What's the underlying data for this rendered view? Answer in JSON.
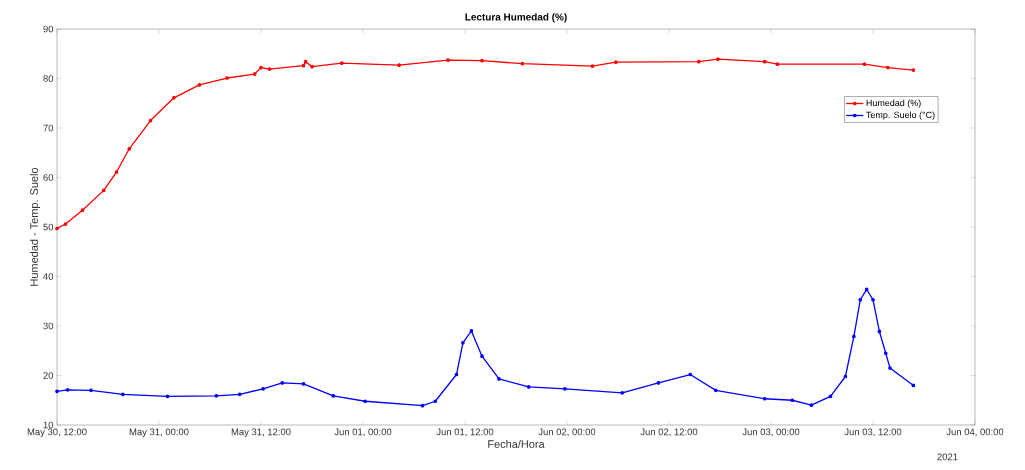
{
  "chart_data": {
    "type": "line",
    "title": "Lectura Humedad (%)",
    "xlabel": "Fecha/Hora",
    "ylabel": "Humedad - Temp. Suelo",
    "xlim": [
      "2021-05-30T12:00",
      "2021-06-04T00:00"
    ],
    "xticks": [
      {
        "value": "2021-05-30T12:00",
        "label": "May 30, 12:00"
      },
      {
        "value": "2021-05-31T00:00",
        "label": "May 31, 00:00"
      },
      {
        "value": "2021-05-31T12:00",
        "label": "May 31, 12:00"
      },
      {
        "value": "2021-06-01T00:00",
        "label": "Jun 01, 00:00"
      },
      {
        "value": "2021-06-01T12:00",
        "label": "Jun 01, 12:00"
      },
      {
        "value": "2021-06-02T00:00",
        "label": "Jun 02, 00:00"
      },
      {
        "value": "2021-06-02T12:00",
        "label": "Jun 02, 12:00"
      },
      {
        "value": "2021-06-03T00:00",
        "label": "Jun 03, 00:00"
      },
      {
        "value": "2021-06-03T12:00",
        "label": "Jun 03, 12:00"
      },
      {
        "value": "2021-06-04T00:00",
        "label": "Jun 04, 00:00"
      }
    ],
    "ylim": [
      10,
      90
    ],
    "yticks": [
      10,
      20,
      30,
      40,
      50,
      60,
      70,
      80,
      90
    ],
    "annotations": [
      "2021"
    ],
    "legend": "top right",
    "marker": "circle",
    "line_style": "solid",
    "grid": false,
    "series": [
      {
        "name": "Humedad (%)",
        "color": "#ff0000",
        "x": [
          "2021-05-30T12:00",
          "2021-05-30T13:00",
          "2021-05-30T15:00",
          "2021-05-30T17:30",
          "2021-05-30T19:00",
          "2021-05-30T20:30",
          "2021-05-30T23:00",
          "2021-05-31T01:45",
          "2021-05-31T04:45",
          "2021-05-31T08:00",
          "2021-05-31T11:15",
          "2021-05-31T12:00",
          "2021-05-31T13:00",
          "2021-05-31T17:00",
          "2021-05-31T17:15",
          "2021-05-31T18:00",
          "2021-05-31T21:30",
          "2021-06-01T04:15",
          "2021-06-01T10:00",
          "2021-06-01T14:00",
          "2021-06-01T18:45",
          "2021-06-02T03:00",
          "2021-06-02T05:45",
          "2021-06-02T15:30",
          "2021-06-02T17:45",
          "2021-06-02T23:15",
          "2021-06-03T00:45",
          "2021-06-03T11:00",
          "2021-06-03T13:45",
          "2021-06-03T16:45"
        ],
        "values": [
          49.7,
          50.6,
          53.4,
          57.4,
          61.1,
          65.8,
          71.5,
          76.1,
          78.7,
          80.1,
          80.9,
          82.2,
          81.9,
          82.6,
          83.4,
          82.4,
          83.1,
          82.7,
          83.7,
          83.6,
          83.0,
          82.5,
          83.3,
          83.4,
          83.9,
          83.4,
          82.9,
          82.9,
          82.2,
          81.7
        ]
      },
      {
        "name": "Temp. Suelo (°C)",
        "color": "#0000ff",
        "x": [
          "2021-05-30T12:00",
          "2021-05-30T13:15",
          "2021-05-30T16:00",
          "2021-05-30T19:45",
          "2021-05-31T01:00",
          "2021-05-31T06:45",
          "2021-05-31T09:30",
          "2021-05-31T12:15",
          "2021-05-31T14:30",
          "2021-05-31T17:00",
          "2021-05-31T20:30",
          "2021-06-01T00:15",
          "2021-06-01T07:00",
          "2021-06-01T08:30",
          "2021-06-01T11:00",
          "2021-06-01T11:45",
          "2021-06-01T12:45",
          "2021-06-01T14:00",
          "2021-06-01T16:00",
          "2021-06-01T19:30",
          "2021-06-01T23:45",
          "2021-06-02T06:30",
          "2021-06-02T10:45",
          "2021-06-02T14:30",
          "2021-06-02T17:30",
          "2021-06-02T23:15",
          "2021-06-03T02:30",
          "2021-06-03T04:45",
          "2021-06-03T07:00",
          "2021-06-03T08:45",
          "2021-06-03T09:45",
          "2021-06-03T10:30",
          "2021-06-03T11:15",
          "2021-06-03T12:00",
          "2021-06-03T12:45",
          "2021-06-03T13:30",
          "2021-06-03T14:00",
          "2021-06-03T16:45"
        ],
        "values": [
          16.8,
          17.1,
          17.0,
          16.2,
          15.8,
          15.9,
          16.2,
          17.3,
          18.5,
          18.3,
          15.9,
          14.8,
          13.9,
          14.8,
          20.2,
          26.6,
          29.0,
          23.9,
          19.3,
          17.7,
          17.3,
          16.5,
          18.5,
          20.2,
          17.0,
          15.3,
          15.0,
          14.0,
          15.8,
          19.8,
          27.9,
          35.3,
          37.4,
          35.3,
          28.9,
          24.5,
          21.5,
          18.0
        ]
      }
    ]
  }
}
